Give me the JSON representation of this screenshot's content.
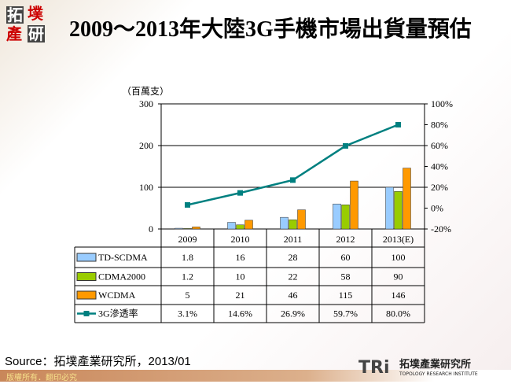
{
  "logo": {
    "chars": [
      "拓",
      "墣",
      "產",
      "研"
    ]
  },
  "title": "2009～2013年大陸3G手機市場出貨量預估",
  "source": "Source：拓墣產業研究所，2013/01",
  "footer": "版權所有．翻印必究",
  "brand": {
    "mark": "TRi",
    "name_cn": "拓墣產業研究所",
    "name_en": "TOPOLOGY RESEARCH INSTITUTE"
  },
  "chart_data": {
    "type": "bar",
    "unit_label": "（百萬支）",
    "categories": [
      "2009",
      "2010",
      "2011",
      "2012",
      "2013(E)"
    ],
    "series": [
      {
        "name": "TD-SCDMA",
        "type": "bar",
        "color": "#99ccff",
        "values": [
          1.8,
          16,
          28,
          60,
          100
        ],
        "labels": [
          "1.8",
          "16",
          "28",
          "60",
          "100"
        ]
      },
      {
        "name": "CDMA2000",
        "type": "bar",
        "color": "#99cc00",
        "values": [
          1.2,
          10,
          22,
          58,
          90
        ],
        "labels": [
          "1.2",
          "10",
          "22",
          "58",
          "90"
        ]
      },
      {
        "name": "WCDMA",
        "type": "bar",
        "color": "#ff9900",
        "values": [
          5,
          21,
          46,
          115,
          146
        ],
        "labels": [
          "5",
          "21",
          "46",
          "115",
          "146"
        ]
      },
      {
        "name": "3G滲透率",
        "type": "line",
        "axis": "right",
        "color": "#008080",
        "values": [
          3.1,
          14.6,
          26.9,
          59.7,
          80.0
        ],
        "labels": [
          "3.1%",
          "14.6%",
          "26.9%",
          "59.7%",
          "80.0%"
        ]
      }
    ],
    "ylim": [
      0,
      300
    ],
    "yticks": [
      "0",
      "100",
      "200",
      "300"
    ],
    "y2lim": [
      -20,
      100
    ],
    "y2ticks": [
      "-20%",
      "0%",
      "20%",
      "40%",
      "60%",
      "80%",
      "100%"
    ],
    "grid": "horizontal",
    "legend": "data-table"
  }
}
